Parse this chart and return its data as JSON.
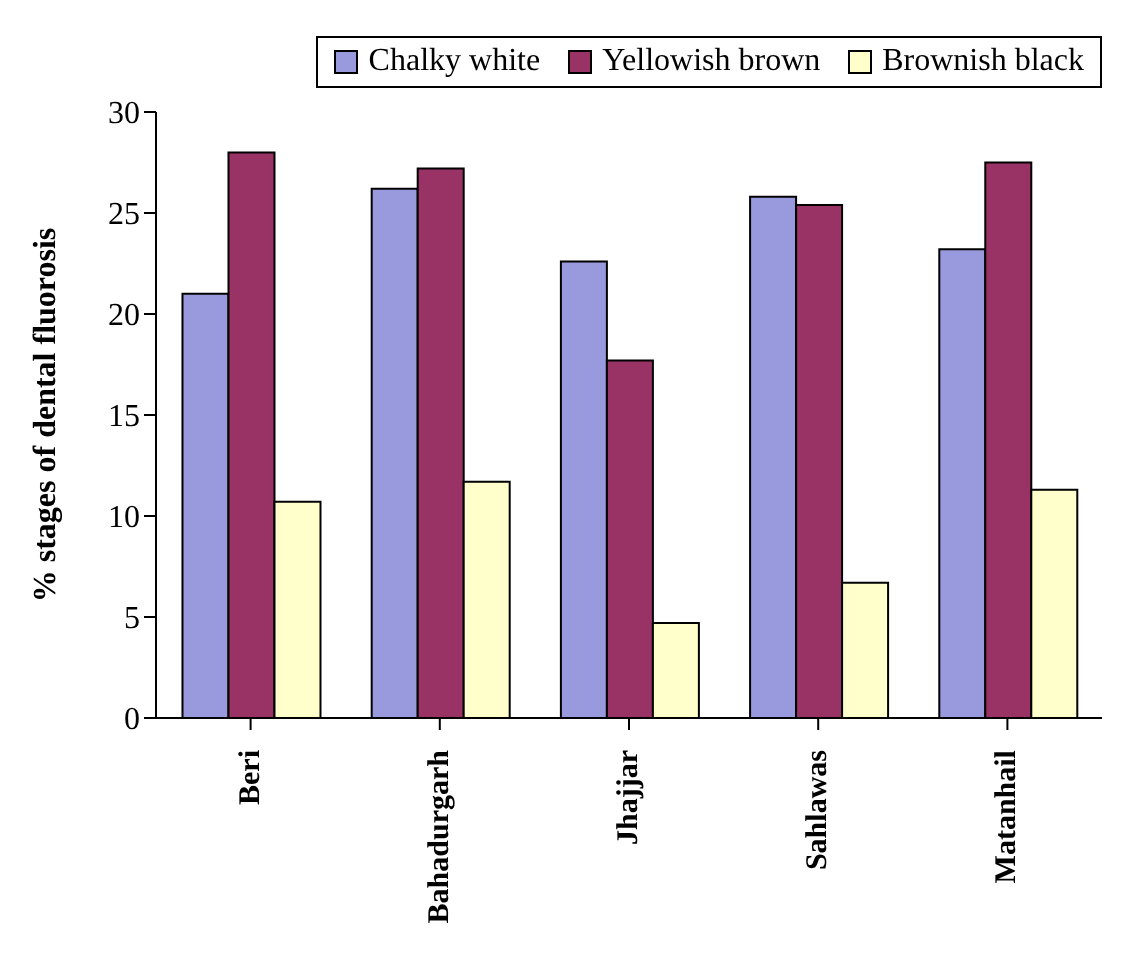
{
  "chart_data": {
    "type": "bar",
    "ylabel": "% stages of dental fluorosis",
    "categories": [
      "Beri",
      "Bahadurgarh",
      "Jhajjar",
      "Sahlawas",
      "Matanhail"
    ],
    "series": [
      {
        "name": "Chalky white",
        "color": "#9999dd",
        "values": [
          21.0,
          26.2,
          22.6,
          25.8,
          23.2
        ]
      },
      {
        "name": "Yellowish brown",
        "color": "#993366",
        "values": [
          28.0,
          27.2,
          17.7,
          25.4,
          27.5
        ]
      },
      {
        "name": "Brownish black",
        "color": "#ffffcc",
        "values": [
          10.7,
          11.7,
          4.7,
          6.7,
          11.3
        ]
      }
    ],
    "ylim": [
      0,
      30
    ],
    "yticks": [
      0,
      5,
      10,
      15,
      20,
      25,
      30
    ],
    "grid": false,
    "legend": "top"
  }
}
